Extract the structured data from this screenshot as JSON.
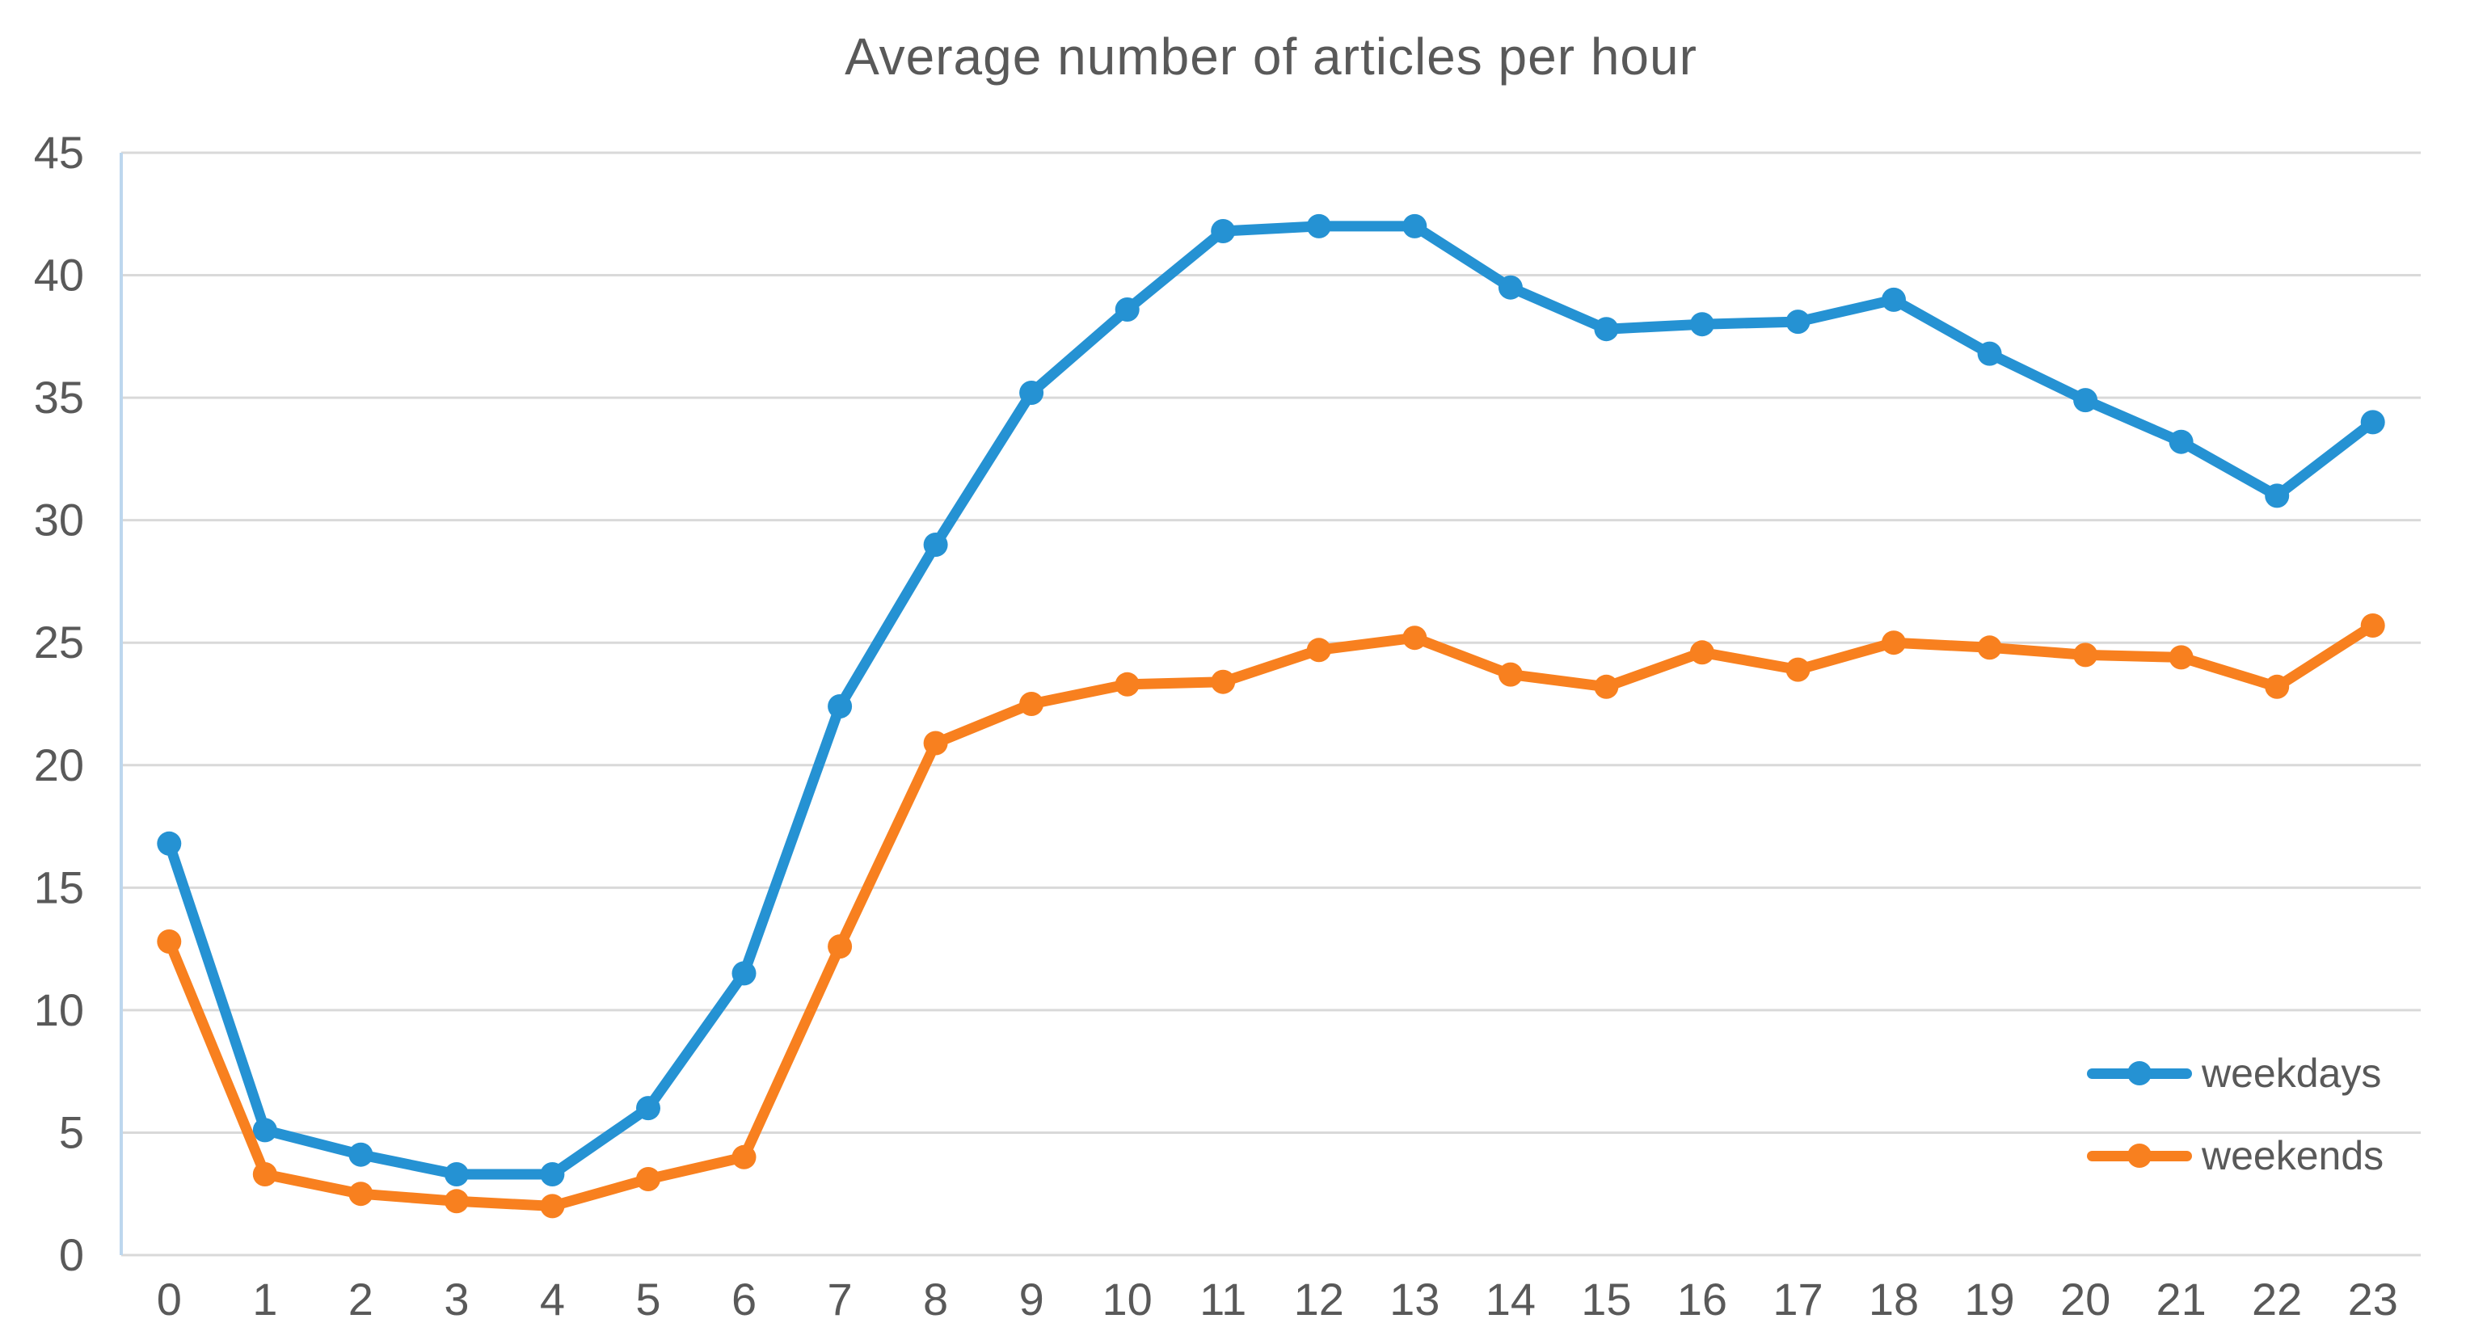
{
  "title": "Average number of articles per hour",
  "legend": {
    "items": [
      {
        "label": "weekdays",
        "color": "#2592D3"
      },
      {
        "label": "weekends",
        "color": "#F8801F"
      }
    ],
    "position": "inside-right-lower"
  },
  "colors": {
    "title_text": "#595959",
    "axis_text": "#595959",
    "gridline": "#D9D9D9",
    "y_axis_line": "#BDD7EE",
    "weekdays": "#2592D3",
    "weekends": "#F8801F",
    "background": "#FFFFFF"
  },
  "chart_data": {
    "type": "line",
    "title": "Average number of articles per hour",
    "xlabel": "",
    "ylabel": "",
    "x": [
      0,
      1,
      2,
      3,
      4,
      5,
      6,
      7,
      8,
      9,
      10,
      11,
      12,
      13,
      14,
      15,
      16,
      17,
      18,
      19,
      20,
      21,
      22,
      23
    ],
    "series": [
      {
        "name": "weekdays",
        "color": "#2592D3",
        "values": [
          16.8,
          5.1,
          4.1,
          3.3,
          3.3,
          6.0,
          11.5,
          22.4,
          29.0,
          35.2,
          38.6,
          41.8,
          42.0,
          42.0,
          39.5,
          37.8,
          38.0,
          38.1,
          39.0,
          36.8,
          34.9,
          33.2,
          31.0,
          34.0
        ]
      },
      {
        "name": "weekends",
        "color": "#F8801F",
        "values": [
          12.8,
          3.3,
          2.5,
          2.2,
          2.0,
          3.1,
          4.0,
          12.6,
          20.9,
          22.5,
          23.3,
          23.4,
          24.7,
          25.2,
          23.7,
          23.2,
          24.6,
          23.9,
          25.0,
          24.8,
          24.5,
          24.4,
          23.2,
          25.7
        ]
      }
    ],
    "ylim": [
      0,
      45
    ],
    "yticks": [
      0,
      5,
      10,
      15,
      20,
      25,
      30,
      35,
      40,
      45
    ],
    "grid": true,
    "legend_position": "inside-right-lower"
  }
}
